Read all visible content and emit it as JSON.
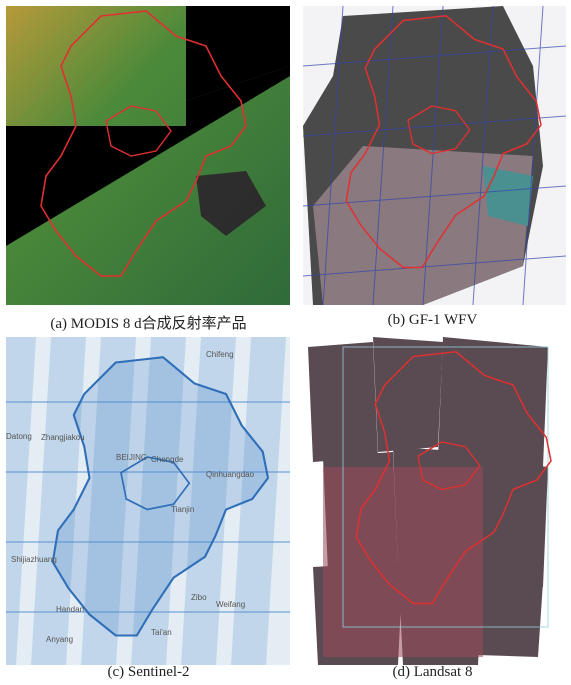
{
  "panels": [
    {
      "caption": "(a) MODIS 8 d合成反射率产品"
    },
    {
      "caption": "(b) GF-1 WFV"
    },
    {
      "caption": "(c) Sentinel-2",
      "labels": [
        "Chifeng",
        "Zhangjiakou",
        "Datong",
        "BEIJING",
        "Chengde",
        "Qinhuangdao",
        "Tianjin",
        "Shijiazhuang",
        "Handan",
        "Anyang",
        "Zibo",
        "Weifang",
        "Tai'an"
      ]
    },
    {
      "caption": "(d) Landsat 8"
    }
  ]
}
